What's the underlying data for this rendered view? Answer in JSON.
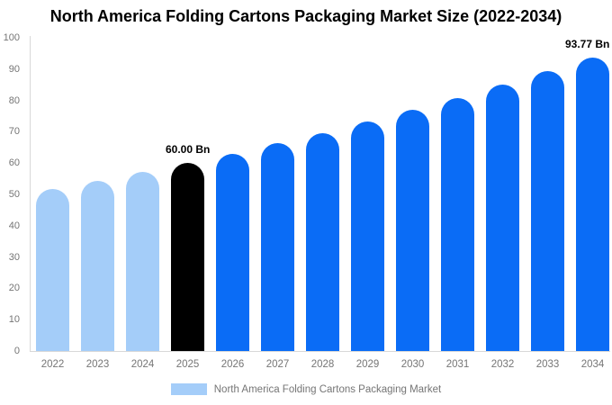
{
  "title": "North America Folding Cartons Packaging Market Size (2022-2034)",
  "colors": {
    "historical": "#A4CDF9",
    "highlight": "#000000",
    "forecast": "#0A6CF6",
    "axis_line": "#D8D8D8",
    "tick_text": "#757575",
    "title_text": "#000000",
    "annotation_text": "#000000"
  },
  "legend": {
    "label": "North America Folding Cartons Packaging Market",
    "swatch_color": "#A4CDF9"
  },
  "chart_data": {
    "type": "bar",
    "title": "North America Folding Cartons Packaging Market Size (2022-2034)",
    "xlabel": "",
    "ylabel": "",
    "unit": "Bn",
    "categories": [
      "2022",
      "2023",
      "2024",
      "2025",
      "2026",
      "2027",
      "2028",
      "2029",
      "2030",
      "2031",
      "2032",
      "2033",
      "2034"
    ],
    "values": [
      51.7,
      54.33,
      57.09,
      60.0,
      63.05,
      66.26,
      69.63,
      73.18,
      76.9,
      80.81,
      84.93,
      89.25,
      93.77
    ],
    "bar_color_keys": [
      "historical",
      "historical",
      "historical",
      "highlight",
      "forecast",
      "forecast",
      "forecast",
      "forecast",
      "forecast",
      "forecast",
      "forecast",
      "forecast",
      "forecast"
    ],
    "annotations": [
      {
        "category": "2025",
        "text": "60.00 Bn"
      },
      {
        "category": "2034",
        "text": "93.77 Bn"
      }
    ],
    "ylim": [
      0,
      100
    ],
    "yticks": [
      0,
      10,
      20,
      30,
      40,
      50,
      60,
      70,
      80,
      90,
      100
    ],
    "grid": false,
    "legend_position": "bottom"
  }
}
